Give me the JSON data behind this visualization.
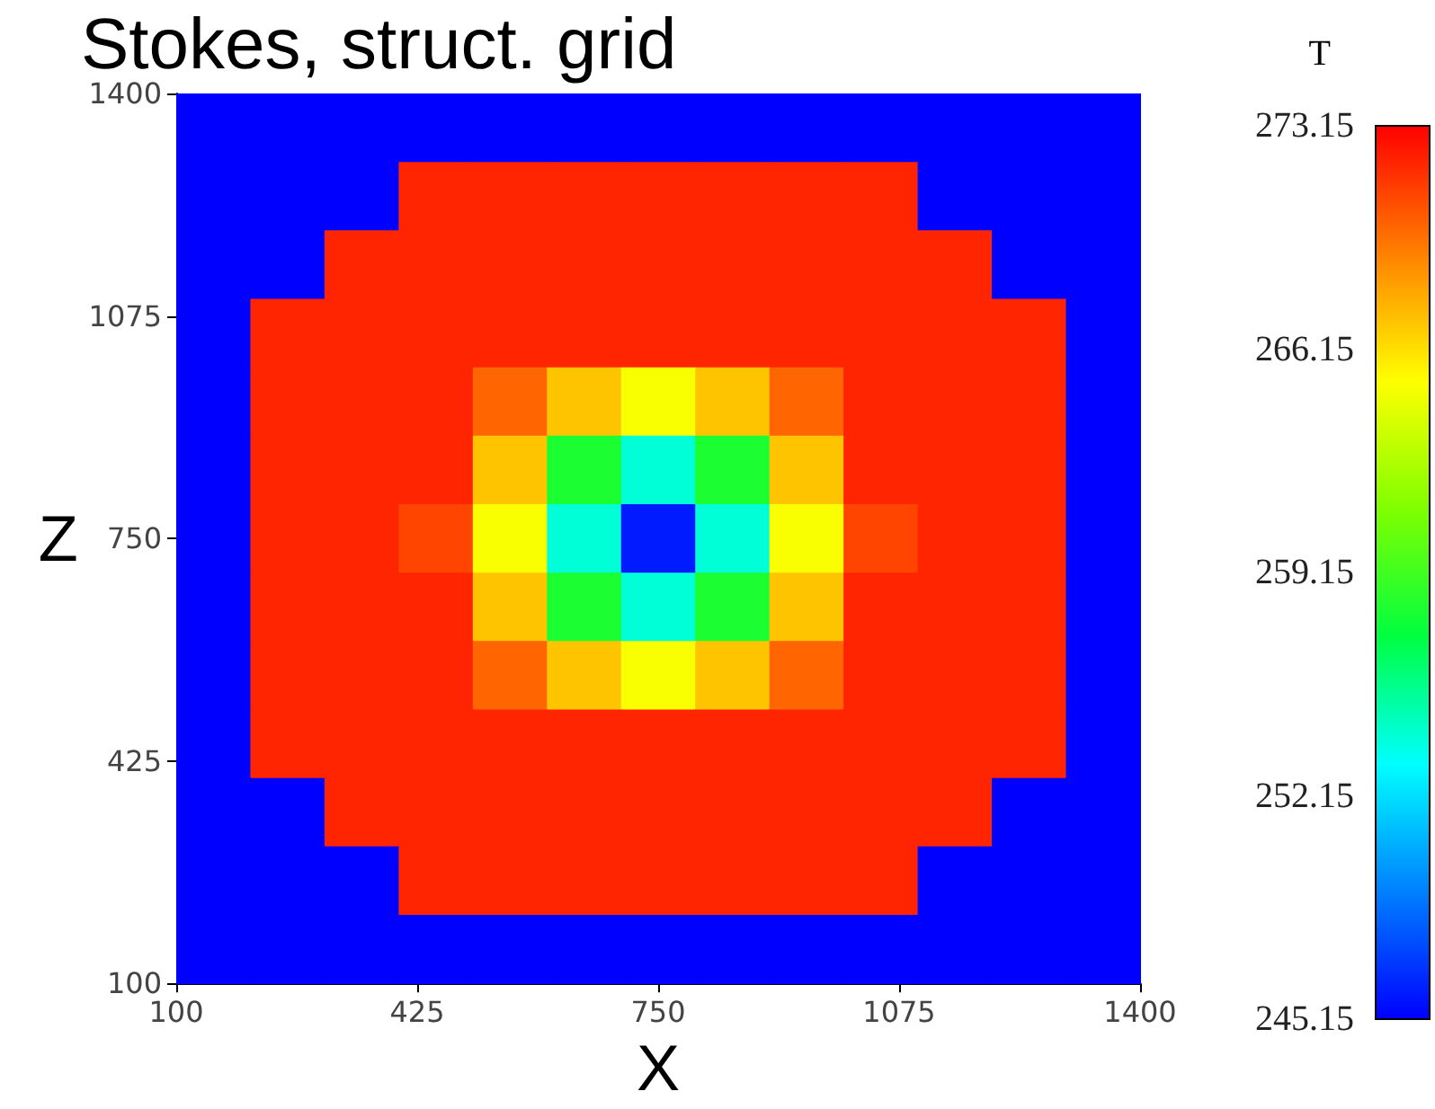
{
  "chart_data": {
    "type": "heatmap",
    "title": "Stokes, struct. grid",
    "xlabel": "X",
    "ylabel": "Z",
    "clabel": "T",
    "x": [
      150,
      250,
      350,
      450,
      550,
      650,
      750,
      850,
      950,
      1050,
      1150,
      1250,
      1350
    ],
    "y": [
      1350,
      1250,
      1150,
      1050,
      950,
      850,
      750,
      650,
      550,
      450,
      350,
      250,
      150
    ],
    "xlim": [
      100,
      1400
    ],
    "xticks": [
      100,
      425,
      750,
      1075,
      1400
    ],
    "ylim": [
      100,
      1400
    ],
    "yticks": [
      100,
      425,
      750,
      1075,
      1400
    ],
    "clim": [
      245.15,
      273.15
    ],
    "cticks": [
      245.15,
      252.15,
      259.15,
      266.15,
      273.15
    ],
    "cells": [
      [
        245.15,
        245.15,
        245.15,
        245.15,
        245.15,
        245.15,
        245.15,
        245.15,
        245.15,
        245.15,
        245.15,
        245.15,
        245.15
      ],
      [
        245.15,
        245.15,
        245.15,
        272,
        272,
        272,
        272,
        272,
        272,
        272,
        245.15,
        245.15,
        245.15
      ],
      [
        245.15,
        245.15,
        272,
        272,
        272,
        272,
        272,
        272,
        272,
        272,
        272,
        245.15,
        245.15
      ],
      [
        245.15,
        272,
        272,
        272,
        272,
        272,
        272,
        272,
        272,
        272,
        272,
        272,
        245.15
      ],
      [
        245.15,
        272,
        272,
        272,
        270,
        267,
        265,
        267,
        270,
        272,
        272,
        272,
        245.15
      ],
      [
        245.15,
        272,
        272,
        272,
        267,
        258,
        254,
        258,
        267,
        272,
        272,
        272,
        245.15
      ],
      [
        245.15,
        272,
        272,
        271,
        265,
        254,
        246,
        254,
        265,
        271,
        272,
        272,
        245.15
      ],
      [
        245.15,
        272,
        272,
        272,
        267,
        258,
        254,
        258,
        267,
        272,
        272,
        272,
        245.15
      ],
      [
        245.15,
        272,
        272,
        272,
        270,
        267,
        265,
        267,
        270,
        272,
        272,
        272,
        245.15
      ],
      [
        245.15,
        272,
        272,
        272,
        272,
        272,
        272,
        272,
        272,
        272,
        272,
        272,
        245.15
      ],
      [
        245.15,
        245.15,
        272,
        272,
        272,
        272,
        272,
        272,
        272,
        272,
        272,
        245.15,
        245.15
      ],
      [
        245.15,
        245.15,
        245.15,
        272,
        272,
        272,
        272,
        272,
        272,
        272,
        245.15,
        245.15,
        245.15
      ],
      [
        245.15,
        245.15,
        245.15,
        245.15,
        245.15,
        245.15,
        245.15,
        245.15,
        245.15,
        245.15,
        245.15,
        245.15,
        245.15
      ]
    ],
    "grid": false
  }
}
